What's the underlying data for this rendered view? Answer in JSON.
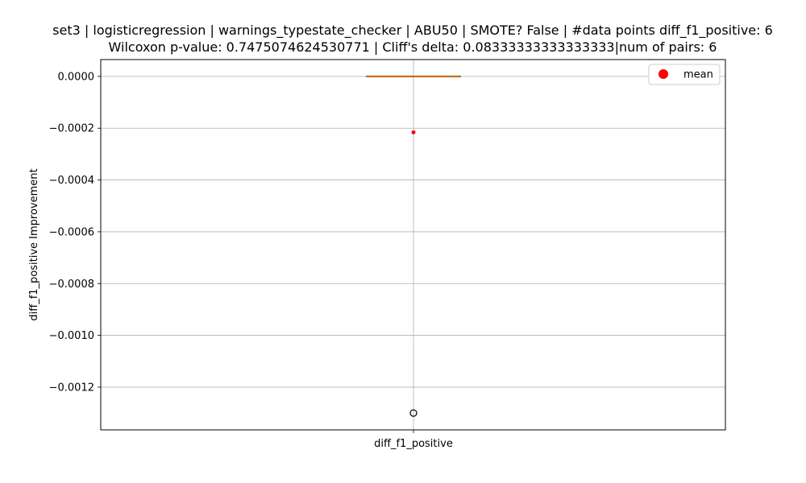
{
  "chart_data": {
    "type": "box",
    "title_line1": "set3 | logisticregression | warnings_typestate_checker | ABU50 | SMOTE? False | #data points diff_f1_positive: 6",
    "title_line2": "Wilcoxon p-value: 0.7475074624530771 | Cliff's delta: 0.08333333333333333|num of pairs: 6",
    "xlabel": "",
    "ylabel": "diff_f1_positive Improvement",
    "categories": [
      "diff_f1_positive"
    ],
    "ylim": [
      -0.001365,
      6.5e-05
    ],
    "yticks": [
      0.0,
      -0.0002,
      -0.0004,
      -0.0006,
      -0.0008,
      -0.001,
      -0.0012
    ],
    "ytick_labels": [
      "0.0000",
      "−0.0002",
      "−0.0004",
      "−0.0006",
      "−0.0008",
      "−0.0010",
      "−0.0012"
    ],
    "grid": true,
    "box": {
      "q1": 0.0,
      "median": 0.0,
      "q3": 0.0,
      "whisker_low": 0.0,
      "whisker_high": 0.0,
      "outliers": [
        -0.0013
      ],
      "mean": -0.000216
    },
    "legend": {
      "position": "top-right",
      "entries": [
        {
          "label": "mean",
          "color": "#ff0000"
        }
      ]
    },
    "colors": {
      "median": "#ff7f0e",
      "mean": "#ff0000",
      "grid": "#b0b0b0",
      "outlier_edge": "#000000"
    }
  }
}
